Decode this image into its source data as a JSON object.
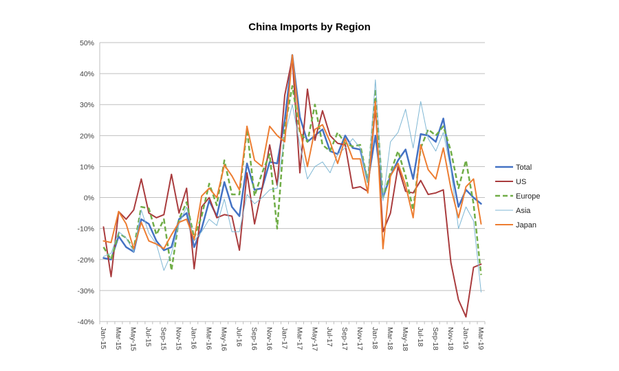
{
  "chart_data": {
    "type": "line",
    "title": "China Imports by Region",
    "xlabel": "",
    "ylabel": "",
    "ylim": [
      -40,
      50
    ],
    "yticks": [
      -40,
      -30,
      -20,
      -10,
      0,
      10,
      20,
      30,
      40,
      50
    ],
    "ytick_labels": [
      "-40%",
      "-30%",
      "-20%",
      "-10%",
      "0%",
      "10%",
      "20%",
      "30%",
      "40%",
      "50%"
    ],
    "grid": true,
    "legend_position": "right",
    "categories": [
      "Jan-15",
      "Feb-15",
      "Mar-15",
      "Apr-15",
      "May-15",
      "Jun-15",
      "Jul-15",
      "Aug-15",
      "Sep-15",
      "Oct-15",
      "Nov-15",
      "Dec-15",
      "Jan-16",
      "Feb-16",
      "Mar-16",
      "Apr-16",
      "May-16",
      "Jun-16",
      "Jul-16",
      "Aug-16",
      "Sep-16",
      "Oct-16",
      "Nov-16",
      "Dec-16",
      "Jan-17",
      "Feb-17",
      "Mar-17",
      "Apr-17",
      "May-17",
      "Jun-17",
      "Jul-17",
      "Aug-17",
      "Sep-17",
      "Oct-17",
      "Nov-17",
      "Dec-17",
      "Jan-18",
      "Feb-18",
      "Mar-18",
      "Apr-18",
      "May-18",
      "Jun-18",
      "Jul-18",
      "Aug-18",
      "Sep-18",
      "Oct-18",
      "Nov-18",
      "Dec-18",
      "Jan-19",
      "Feb-19",
      "Mar-19"
    ],
    "xtick_labels": [
      "Jan-15",
      "Mar-15",
      "May-15",
      "Jul-15",
      "Sep-15",
      "Nov-15",
      "Jan-16",
      "Mar-16",
      "May-16",
      "Jul-16",
      "Sep-16",
      "Nov-16",
      "Jan-17",
      "Mar-17",
      "May-17",
      "Jul-17",
      "Sep-17",
      "Nov-17",
      "Jan-18",
      "Mar-18",
      "May-18",
      "Jul-18",
      "Sep-18",
      "Nov-18",
      "Jan-19",
      "Mar-19"
    ],
    "series": [
      {
        "name": "Total",
        "color": "#4472C4",
        "style": "solid",
        "width": 2.5,
        "values": [
          -19.5,
          -20,
          -12.5,
          -16,
          -17.5,
          -7,
          -8.5,
          -14,
          -17,
          -16,
          -7,
          -5,
          -16,
          -10,
          -1,
          -6,
          5,
          -3,
          -6,
          11,
          2.5,
          3,
          11.5,
          11,
          25,
          46,
          26,
          18,
          20,
          22,
          15,
          14,
          20,
          16,
          15.5,
          5,
          20,
          0,
          7,
          12,
          15.5,
          6,
          20.5,
          20,
          18,
          25.5,
          10,
          -3,
          2.5,
          0,
          -2
        ]
      },
      {
        "name": "US",
        "color": "#A93B3D",
        "style": "solid",
        "width": 2,
        "values": [
          -9.5,
          -25.5,
          -4.5,
          -7,
          -4,
          6,
          -5,
          -6.5,
          -5.5,
          7.5,
          -5,
          3,
          -23,
          -3,
          0,
          -6.5,
          -5.5,
          -6,
          -17,
          8,
          -8.5,
          3,
          17,
          4,
          33,
          45,
          8,
          35,
          18.5,
          28,
          20,
          17.5,
          17,
          3,
          3.5,
          2,
          29,
          -11,
          -5,
          10,
          2,
          1.5,
          5.5,
          1,
          1.5,
          2.5,
          -21,
          -33,
          -38.5,
          -22.5,
          -21.5
        ]
      },
      {
        "name": "Europe",
        "color": "#70AD47",
        "style": "dashed",
        "width": 2.5,
        "values": [
          -16,
          -20,
          -11.5,
          -13,
          -16.5,
          -3,
          -3.5,
          -12,
          -7,
          -23.5,
          -7,
          -1.5,
          -13,
          -6,
          4.5,
          -2.5,
          12,
          1,
          1,
          22,
          0.5,
          8,
          14,
          -10,
          22.5,
          36,
          21,
          18,
          30,
          17,
          15,
          21,
          17.5,
          16.5,
          17,
          5,
          35,
          0,
          8,
          15,
          7,
          -4,
          16,
          22,
          20,
          23,
          15,
          3,
          12,
          -2,
          -25
        ]
      },
      {
        "name": "Asia",
        "color": "#7FB7D4",
        "style": "solid",
        "width": 1,
        "values": [
          -19,
          -18,
          -11,
          -13,
          -17.5,
          -4,
          -11.5,
          -15,
          -23.5,
          -18,
          -8.5,
          -3,
          -14,
          -11,
          -7,
          -9,
          -0.5,
          -11,
          -11,
          1,
          -2,
          0,
          2.5,
          3,
          20,
          30,
          17,
          6,
          10,
          11.5,
          8,
          14,
          16,
          19,
          16,
          5,
          38,
          -1,
          18,
          21,
          28.5,
          16,
          31,
          19,
          15,
          21,
          9,
          -10,
          -3,
          -7.5,
          -30.5
        ]
      },
      {
        "name": "Japan",
        "color": "#ED7D31",
        "style": "solid",
        "width": 2,
        "values": [
          -14,
          -14.5,
          -4.5,
          -8.5,
          -16.5,
          -8,
          -14,
          -15,
          -16.5,
          -12,
          -8,
          -7,
          -13.5,
          0.5,
          3,
          0,
          10.5,
          7,
          2.5,
          23,
          12,
          10,
          23,
          20,
          18,
          46,
          22,
          10,
          22,
          23.5,
          18,
          11,
          19,
          12.5,
          12.5,
          1.5,
          31,
          -16.5,
          7,
          11,
          4,
          -6.5,
          17,
          9,
          6,
          16,
          3,
          -6.5,
          3.5,
          6,
          -8.5
        ]
      }
    ]
  }
}
